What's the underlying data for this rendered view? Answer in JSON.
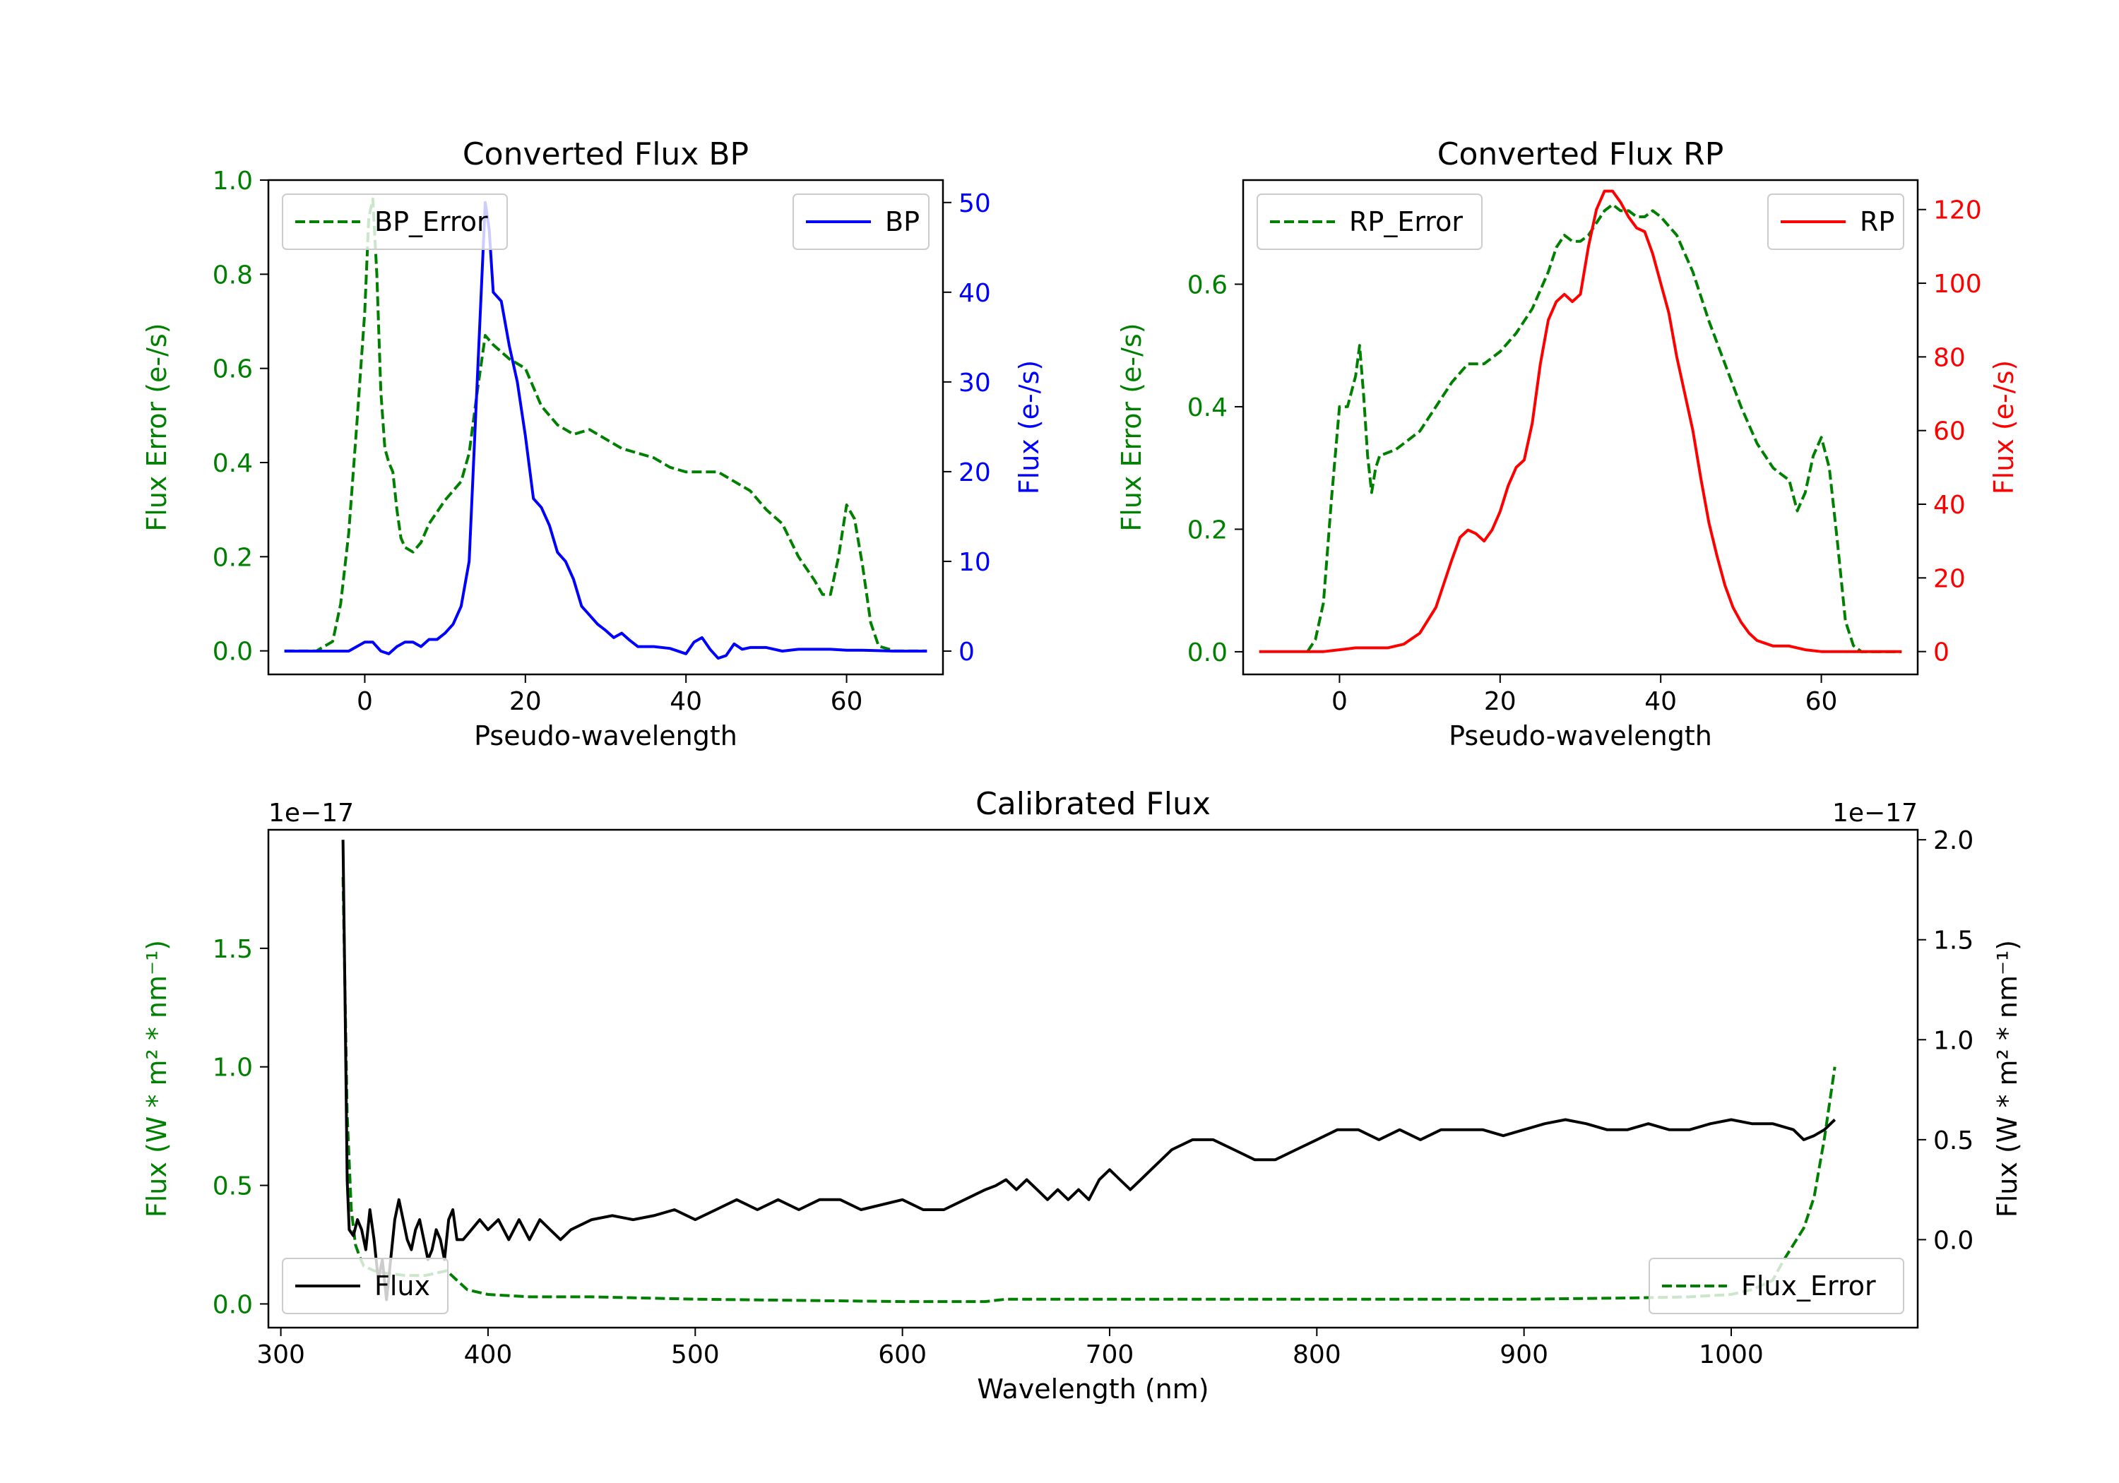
{
  "chart_data": [
    {
      "type": "line",
      "title": "Converted Flux BP",
      "xlabel": "Pseudo-wavelength",
      "ylabel_left": "Flux Error (e-/s)",
      "ylabel_right": "Flux (e-/s)",
      "xlim": [
        -12,
        72
      ],
      "ylim_left": [
        -0.05,
        1.0
      ],
      "ylim_right": [
        -2.6,
        52.5
      ],
      "xticks": [
        0,
        20,
        40,
        60
      ],
      "yticks_left": [
        0.0,
        0.2,
        0.4,
        0.6,
        0.8,
        1.0
      ],
      "yticks_right": [
        0,
        10,
        20,
        30,
        40,
        50
      ],
      "series": [
        {
          "name": "BP_Error",
          "axis": "left",
          "color": "#008000",
          "style": "dashed",
          "x": [
            -10,
            -6,
            -4,
            -3,
            -2,
            -1,
            0,
            0.5,
            1,
            1.5,
            2,
            2.5,
            3,
            3.5,
            4,
            4.5,
            5,
            6,
            7,
            8,
            10,
            12,
            13,
            14,
            15,
            16,
            18,
            20,
            22,
            24,
            26,
            28,
            30,
            32,
            34,
            36,
            38,
            40,
            44,
            46,
            48,
            50,
            52,
            54,
            56,
            57,
            58,
            59,
            60,
            61,
            62,
            63,
            64,
            66,
            70
          ],
          "y": [
            0.0,
            0.0,
            0.02,
            0.1,
            0.25,
            0.48,
            0.72,
            0.92,
            0.96,
            0.8,
            0.55,
            0.43,
            0.4,
            0.38,
            0.3,
            0.24,
            0.22,
            0.21,
            0.23,
            0.27,
            0.32,
            0.36,
            0.42,
            0.55,
            0.67,
            0.65,
            0.62,
            0.6,
            0.52,
            0.48,
            0.46,
            0.47,
            0.45,
            0.43,
            0.42,
            0.41,
            0.39,
            0.38,
            0.38,
            0.36,
            0.34,
            0.3,
            0.27,
            0.2,
            0.15,
            0.12,
            0.12,
            0.2,
            0.31,
            0.28,
            0.18,
            0.06,
            0.01,
            0.0,
            0.0
          ]
        },
        {
          "name": "BP",
          "axis": "right",
          "color": "#0000ff",
          "style": "solid",
          "x": [
            -10,
            -2,
            0,
            1,
            2,
            3,
            4,
            5,
            6,
            7,
            8,
            9,
            10,
            11,
            12,
            13,
            14,
            15,
            15.5,
            16,
            17,
            18,
            19,
            20,
            21,
            22,
            23,
            24,
            25,
            26,
            27,
            28,
            29,
            30,
            31,
            32,
            33,
            34,
            36,
            38,
            40,
            41,
            42,
            43,
            44,
            45,
            46,
            47,
            48,
            50,
            52,
            54,
            56,
            58,
            60,
            62,
            66,
            70
          ],
          "y": [
            0,
            0,
            1,
            1,
            0,
            -0.3,
            0.5,
            1,
            1,
            0.5,
            1.3,
            1.3,
            2,
            3,
            5,
            10,
            30,
            50,
            47,
            40,
            39,
            34,
            30,
            24,
            17,
            16,
            14,
            11,
            10,
            8,
            5,
            4,
            3,
            2.3,
            1.5,
            2,
            1.2,
            0.5,
            0.5,
            0.3,
            -0.3,
            1,
            1.5,
            0.2,
            -0.8,
            -0.5,
            0.8,
            0.2,
            0.4,
            0.4,
            0,
            0.2,
            0.2,
            0.2,
            0.1,
            0.1,
            0,
            0
          ]
        }
      ],
      "legend": [
        {
          "name": "BP_Error",
          "position": "upper-left"
        },
        {
          "name": "BP",
          "position": "upper-right"
        }
      ]
    },
    {
      "type": "line",
      "title": "Converted Flux RP",
      "xlabel": "Pseudo-wavelength",
      "ylabel_left": "Flux Error (e-/s)",
      "ylabel_right": "Flux (e-/s)",
      "xlim": [
        -12,
        72
      ],
      "ylim_left": [
        -0.037,
        0.77
      ],
      "ylim_right": [
        -6.2,
        128
      ],
      "xticks": [
        0,
        20,
        40,
        60
      ],
      "yticks_left": [
        0.0,
        0.2,
        0.4,
        0.6
      ],
      "yticks_right": [
        0,
        20,
        40,
        60,
        80,
        100,
        120
      ],
      "series": [
        {
          "name": "RP_Error",
          "axis": "left",
          "color": "#008000",
          "style": "dashed",
          "x": [
            -4,
            -3,
            -2,
            -1,
            0,
            1,
            2,
            2.5,
            3,
            3.5,
            4,
            4.5,
            5,
            7,
            10,
            12,
            14,
            16,
            18,
            20,
            22,
            24,
            26,
            27,
            28,
            29,
            30,
            31,
            32,
            33,
            34,
            35,
            36,
            37,
            38,
            39,
            40,
            42,
            44,
            46,
            48,
            50,
            52,
            54,
            55,
            56,
            57,
            58,
            59,
            60,
            61,
            62,
            63,
            64,
            65,
            70
          ],
          "y": [
            0,
            0.02,
            0.08,
            0.25,
            0.4,
            0.4,
            0.45,
            0.5,
            0.42,
            0.32,
            0.26,
            0.3,
            0.32,
            0.33,
            0.36,
            0.4,
            0.44,
            0.47,
            0.47,
            0.49,
            0.52,
            0.56,
            0.62,
            0.66,
            0.68,
            0.67,
            0.67,
            0.68,
            0.7,
            0.72,
            0.73,
            0.72,
            0.72,
            0.71,
            0.71,
            0.72,
            0.71,
            0.68,
            0.62,
            0.54,
            0.47,
            0.4,
            0.34,
            0.3,
            0.29,
            0.28,
            0.23,
            0.26,
            0.32,
            0.35,
            0.3,
            0.18,
            0.05,
            0.01,
            0,
            0
          ]
        },
        {
          "name": "RP",
          "axis": "right",
          "color": "#ff0000",
          "style": "solid",
          "x": [
            -10,
            -2,
            0,
            2,
            4,
            6,
            8,
            10,
            12,
            14,
            15,
            16,
            17,
            18,
            19,
            20,
            21,
            22,
            23,
            24,
            25,
            26,
            27,
            28,
            29,
            30,
            31,
            32,
            33,
            34,
            35,
            36,
            37,
            38,
            39,
            40,
            41,
            42,
            43,
            44,
            45,
            46,
            47,
            48,
            49,
            50,
            51,
            52,
            54,
            56,
            58,
            60,
            62,
            70
          ],
          "y": [
            0,
            0,
            0.5,
            1,
            1,
            1,
            2,
            5,
            12,
            25,
            31,
            33,
            32,
            30,
            33,
            38,
            45,
            50,
            52,
            62,
            78,
            90,
            95,
            97,
            95,
            97,
            110,
            120,
            125,
            125,
            122,
            118,
            115,
            114,
            108,
            100,
            92,
            80,
            70,
            60,
            47,
            35,
            26,
            18,
            12,
            8,
            5,
            3,
            1.5,
            1.5,
            0.5,
            0,
            0,
            0
          ]
        }
      ],
      "legend": [
        {
          "name": "RP_Error",
          "position": "upper-left"
        },
        {
          "name": "RP",
          "position": "upper-right"
        }
      ]
    },
    {
      "type": "line",
      "title": "Calibrated Flux",
      "xlabel": "Wavelength (nm)",
      "ylabel_left": "Flux (W * m² * nm⁻¹)",
      "ylabel_right": "Flux (W * m² * nm⁻¹)",
      "offset_left": "1e−17",
      "offset_right": "1e−17",
      "xlim": [
        294,
        1090
      ],
      "ylim_left": [
        -0.1,
        2.0
      ],
      "ylim_right": [
        -0.44,
        2.05
      ],
      "xticks": [
        300,
        400,
        500,
        600,
        700,
        800,
        900,
        1000
      ],
      "yticks_left": [
        0.0,
        0.5,
        1.0,
        1.5
      ],
      "yticks_right": [
        0.0,
        0.5,
        1.0,
        1.5,
        2.0
      ],
      "series": [
        {
          "name": "Flux_Error",
          "axis": "left",
          "color": "#008000",
          "style": "dashed",
          "x": [
            330,
            332,
            334,
            336,
            338,
            340,
            345,
            350,
            360,
            370,
            380,
            385,
            390,
            400,
            420,
            450,
            500,
            600,
            640,
            650,
            700,
            800,
            900,
            950,
            980,
            1000,
            1010,
            1020,
            1025,
            1030,
            1035,
            1040,
            1045,
            1050
          ],
          "y": [
            1.8,
            0.8,
            0.4,
            0.25,
            0.2,
            0.16,
            0.14,
            0.13,
            0.12,
            0.12,
            0.14,
            0.1,
            0.06,
            0.04,
            0.03,
            0.03,
            0.02,
            0.01,
            0.01,
            0.02,
            0.02,
            0.02,
            0.02,
            0.025,
            0.03,
            0.04,
            0.06,
            0.1,
            0.18,
            0.25,
            0.32,
            0.45,
            0.7,
            1.0
          ]
        },
        {
          "name": "Flux",
          "axis": "right",
          "color": "#000000",
          "style": "solid",
          "x": [
            330,
            331,
            332,
            333,
            335,
            337,
            339,
            341,
            343,
            345,
            347,
            349,
            351,
            353,
            355,
            357,
            359,
            361,
            363,
            365,
            367,
            369,
            371,
            373,
            375,
            377,
            379,
            381,
            383,
            385,
            388,
            392,
            396,
            400,
            405,
            410,
            415,
            420,
            425,
            430,
            435,
            440,
            450,
            460,
            470,
            480,
            490,
            500,
            510,
            520,
            530,
            540,
            550,
            560,
            570,
            580,
            600,
            610,
            620,
            630,
            640,
            645,
            650,
            655,
            660,
            665,
            670,
            675,
            680,
            685,
            690,
            695,
            700,
            705,
            710,
            715,
            720,
            725,
            730,
            740,
            750,
            760,
            770,
            780,
            790,
            800,
            810,
            820,
            830,
            840,
            850,
            860,
            870,
            880,
            890,
            900,
            910,
            920,
            930,
            940,
            950,
            960,
            970,
            980,
            990,
            1000,
            1010,
            1020,
            1030,
            1035,
            1040,
            1045,
            1050
          ],
          "y": [
            2.0,
            1.2,
            0.3,
            0.05,
            0.02,
            0.1,
            0.05,
            -0.05,
            0.15,
            0.0,
            -0.2,
            -0.1,
            -0.3,
            -0.1,
            0.1,
            0.2,
            0.1,
            0.0,
            -0.05,
            0.05,
            0.1,
            0.0,
            -0.1,
            -0.05,
            0.05,
            0.0,
            -0.1,
            0.1,
            0.15,
            0.0,
            0.0,
            0.05,
            0.1,
            0.05,
            0.1,
            0.0,
            0.1,
            0.0,
            0.1,
            0.05,
            0.0,
            0.05,
            0.1,
            0.12,
            0.1,
            0.12,
            0.15,
            0.1,
            0.15,
            0.2,
            0.15,
            0.2,
            0.15,
            0.2,
            0.2,
            0.15,
            0.2,
            0.15,
            0.15,
            0.2,
            0.25,
            0.27,
            0.3,
            0.25,
            0.3,
            0.25,
            0.2,
            0.25,
            0.2,
            0.25,
            0.2,
            0.3,
            0.35,
            0.3,
            0.25,
            0.3,
            0.35,
            0.4,
            0.45,
            0.5,
            0.5,
            0.45,
            0.4,
            0.4,
            0.45,
            0.5,
            0.55,
            0.55,
            0.5,
            0.55,
            0.5,
            0.55,
            0.55,
            0.55,
            0.52,
            0.55,
            0.58,
            0.6,
            0.58,
            0.55,
            0.55,
            0.58,
            0.55,
            0.55,
            0.58,
            0.6,
            0.58,
            0.58,
            0.55,
            0.5,
            0.52,
            0.55,
            0.6
          ]
        }
      ],
      "legend": [
        {
          "name": "Flux",
          "position": "lower-left"
        },
        {
          "name": "Flux_Error",
          "position": "lower-right"
        }
      ]
    }
  ]
}
